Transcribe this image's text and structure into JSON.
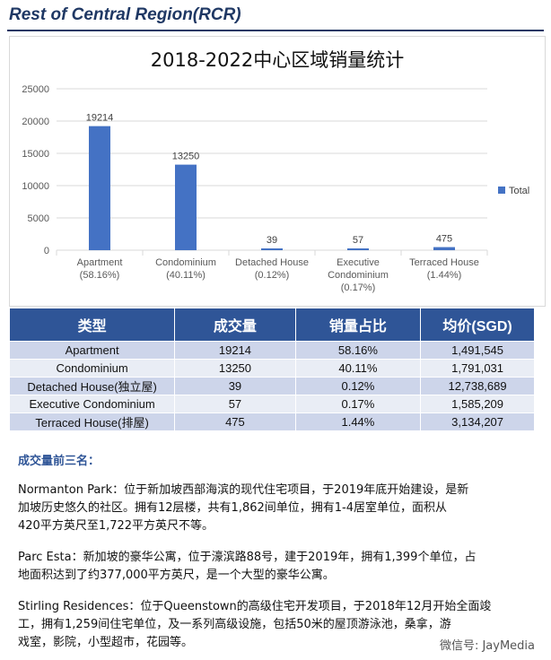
{
  "page_title": "Rest of Central Region(RCR)",
  "chart_data": {
    "type": "bar",
    "title": "2018-2022中心区域销量统计",
    "categories": [
      [
        "Apartment",
        "(58.16%)"
      ],
      [
        "Condominium",
        "(40.11%)"
      ],
      [
        "Detached House",
        "(0.12%)"
      ],
      [
        "Executive",
        "Condominium",
        "(0.17%)"
      ],
      [
        "Terraced House",
        "(1.44%)"
      ]
    ],
    "series": [
      {
        "name": "Total",
        "values": [
          19214,
          13250,
          39,
          57,
          475
        ]
      }
    ],
    "ylim": [
      0,
      25000
    ],
    "yticks": [
      0,
      5000,
      10000,
      15000,
      20000,
      25000
    ],
    "grid": true,
    "legend": "right",
    "colors": {
      "bar": "#4472c4"
    }
  },
  "table": {
    "headers": [
      "类型",
      "成交量",
      "销量占比",
      "均价(SGD)"
    ],
    "rows": [
      [
        "Apartment",
        "19214",
        "58.16%",
        "1,491,545"
      ],
      [
        "Condominium",
        "13250",
        "40.11%",
        "1,791,031"
      ],
      [
        "Detached House(独立屋)",
        "39",
        "0.12%",
        "12,738,689"
      ],
      [
        "Executive Condominium",
        "57",
        "0.17%",
        "1,585,209"
      ],
      [
        "Terraced House(排屋)",
        "475",
        "1.44%",
        "3,134,207"
      ]
    ]
  },
  "top3": {
    "heading": "成交量前三名：",
    "items": [
      {
        "lines": [
          "Normanton Park：位于新加坡西部海滨的现代住宅项目，于2019年底开始建设，是新",
          "加坡历史悠久的社区。拥有12层楼，共有1,862间单位，拥有1-4居室单位，面积从",
          "420平方英尺至1,722平方英尺不等。"
        ]
      },
      {
        "lines": [
          "Parc Esta：新加坡的豪华公寓，位于濠滨路88号，建于2019年，拥有1,399个单位，占",
          "地面积达到了约377,000平方英尺，是一个大型的豪华公寓。"
        ]
      },
      {
        "lines": [
          "Stirling Residences：位于Queenstown的高级住宅开发项目，于2018年12月开始全面竣",
          "工，拥有1,259间住宅单位，及一系列高级设施，包括50米的屋顶游泳池，桑拿，游",
          "戏室，影院，小型超市，花园等。"
        ]
      }
    ]
  },
  "watermark": "微信号: JayMedia"
}
